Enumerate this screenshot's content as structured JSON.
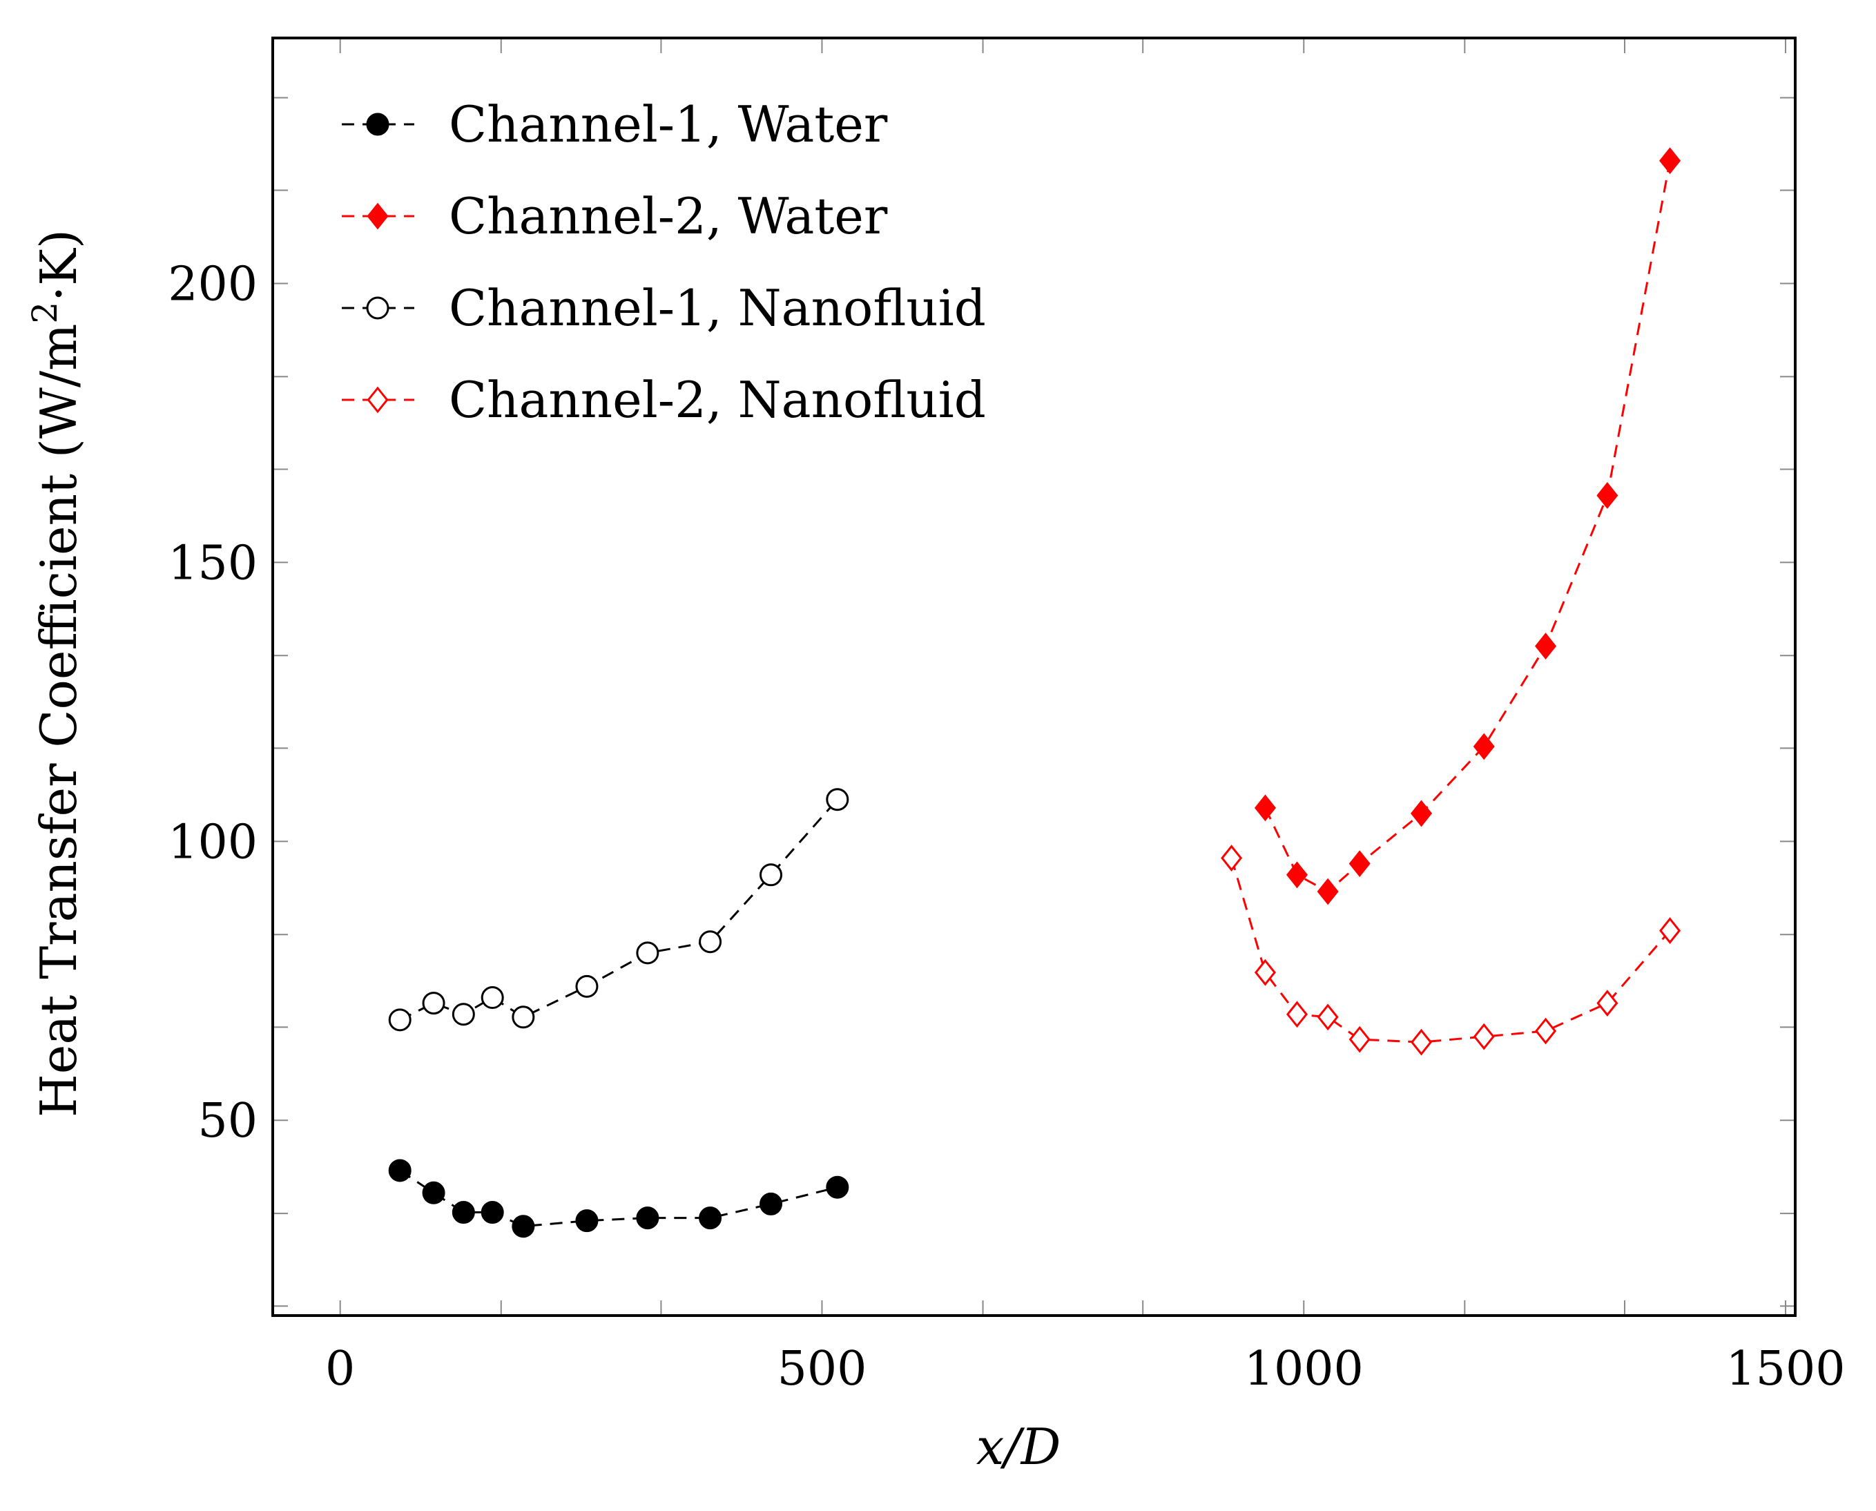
{
  "chart_data": {
    "type": "line",
    "title": "",
    "xlabel": "x/D",
    "ylabel_main": "Heat Transfer Coefficient (W/m",
    "ylabel_sup": "2",
    "ylabel_tail": "·K)",
    "xlim": [
      -70,
      1510
    ],
    "ylim": [
      15,
      244
    ],
    "x_ticks": [
      0,
      500,
      1000,
      1500
    ],
    "x_tick_labels": [
      "0",
      "500",
      "1000",
      "1500"
    ],
    "x_minor_ticks": [
      0,
      167,
      333,
      500,
      667,
      833,
      1000,
      1167,
      1333,
      1500
    ],
    "y_ticks": [
      50,
      100,
      150,
      200
    ],
    "y_tick_labels": [
      "50",
      "100",
      "150",
      "200"
    ],
    "y_minor_ticks": [
      16.7,
      33.3,
      50,
      66.7,
      83.3,
      100,
      116.7,
      133.3,
      150,
      166.7,
      183.3,
      200,
      216.7,
      233.3
    ],
    "legend_position": "top-left",
    "series": [
      {
        "name": "Channel-1, Water",
        "color": "#000000",
        "marker": "circle-filled",
        "x": [
          62,
          97,
          128,
          158,
          190,
          256,
          319,
          384,
          447,
          516
        ],
        "y": [
          41,
          37,
          33.5,
          33.5,
          31,
          32,
          32.5,
          32.5,
          35,
          38
        ]
      },
      {
        "name": "Channel-2, Water",
        "color": "#ff0000",
        "marker": "diamond-filled",
        "x": [
          960,
          993,
          1025,
          1058,
          1122,
          1187,
          1251,
          1315,
          1380
        ],
        "y": [
          106,
          94,
          91,
          96,
          105,
          117,
          135,
          162,
          222
        ]
      },
      {
        "name": "Channel-1, Nanofluid",
        "color": "#000000",
        "marker": "circle-open",
        "x": [
          62,
          97,
          128,
          158,
          190,
          256,
          319,
          384,
          447,
          516
        ],
        "y": [
          68,
          71,
          69,
          72,
          68.5,
          74,
          80,
          82,
          94,
          107.5
        ]
      },
      {
        "name": "Channel-2, Nanofluid",
        "color": "#ff0000",
        "marker": "diamond-open",
        "x": [
          925,
          960,
          993,
          1025,
          1058,
          1122,
          1187,
          1251,
          1315,
          1380
        ],
        "y": [
          97,
          76.5,
          69,
          68.5,
          64.5,
          64,
          65,
          66,
          71,
          84
        ]
      }
    ]
  }
}
